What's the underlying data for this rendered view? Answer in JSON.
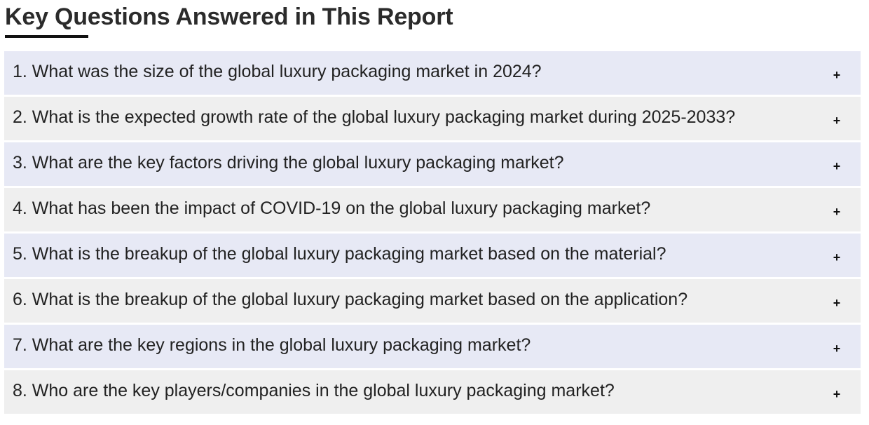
{
  "page": {
    "title": "Key Questions Answered in This Report"
  },
  "faq": {
    "toggle_icon": "plus-icon",
    "toggle_glyph": "+",
    "items": [
      {
        "question": "1. What was the size of the global luxury packaging market in 2024?"
      },
      {
        "question": "2. What is the expected growth rate of the global luxury packaging market during 2025-2033?"
      },
      {
        "question": "3. What are the key factors driving the global luxury packaging market?"
      },
      {
        "question": "4. What has been the impact of COVID-19 on the global luxury packaging market?"
      },
      {
        "question": "5. What is the breakup of the global luxury packaging market based on the material?"
      },
      {
        "question": "6. What is the breakup of the global luxury packaging market based on the application?"
      },
      {
        "question": "7. What are the key regions in the global luxury packaging market?"
      },
      {
        "question": "8. Who are the key players/companies in the global luxury packaging market?"
      }
    ]
  },
  "colors": {
    "row_odd": "#e7e9f5",
    "row_even": "#efefef",
    "underline": "#111111",
    "text": "#222222"
  }
}
